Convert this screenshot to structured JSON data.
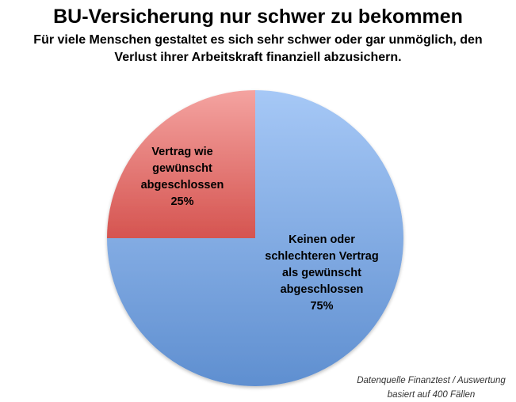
{
  "chart_data": {
    "type": "pie",
    "title": "BU-Versicherung nur schwer zu bekommen",
    "subtitle_lines": [
      "Für viele Menschen gestaltet es sich sehr schwer oder gar unmöglich, den",
      "Verlust ihrer Arbeitskraft finanziell abzusichern."
    ],
    "slices": [
      {
        "label_lines": [
          "Keinen oder",
          "schlechteren Vertrag",
          "als gewünscht",
          "abgeschlossen",
          "75%"
        ],
        "value": 75,
        "color": "#7fa8e0"
      },
      {
        "label_lines": [
          "Vertrag wie",
          "gewünscht",
          "abgeschlossen",
          "25%"
        ],
        "value": 25,
        "color": "#e07370"
      }
    ],
    "source_lines": [
      "Datenquelle Finanztest / Auswertung",
      "basiert auf 400 Fällen"
    ]
  }
}
